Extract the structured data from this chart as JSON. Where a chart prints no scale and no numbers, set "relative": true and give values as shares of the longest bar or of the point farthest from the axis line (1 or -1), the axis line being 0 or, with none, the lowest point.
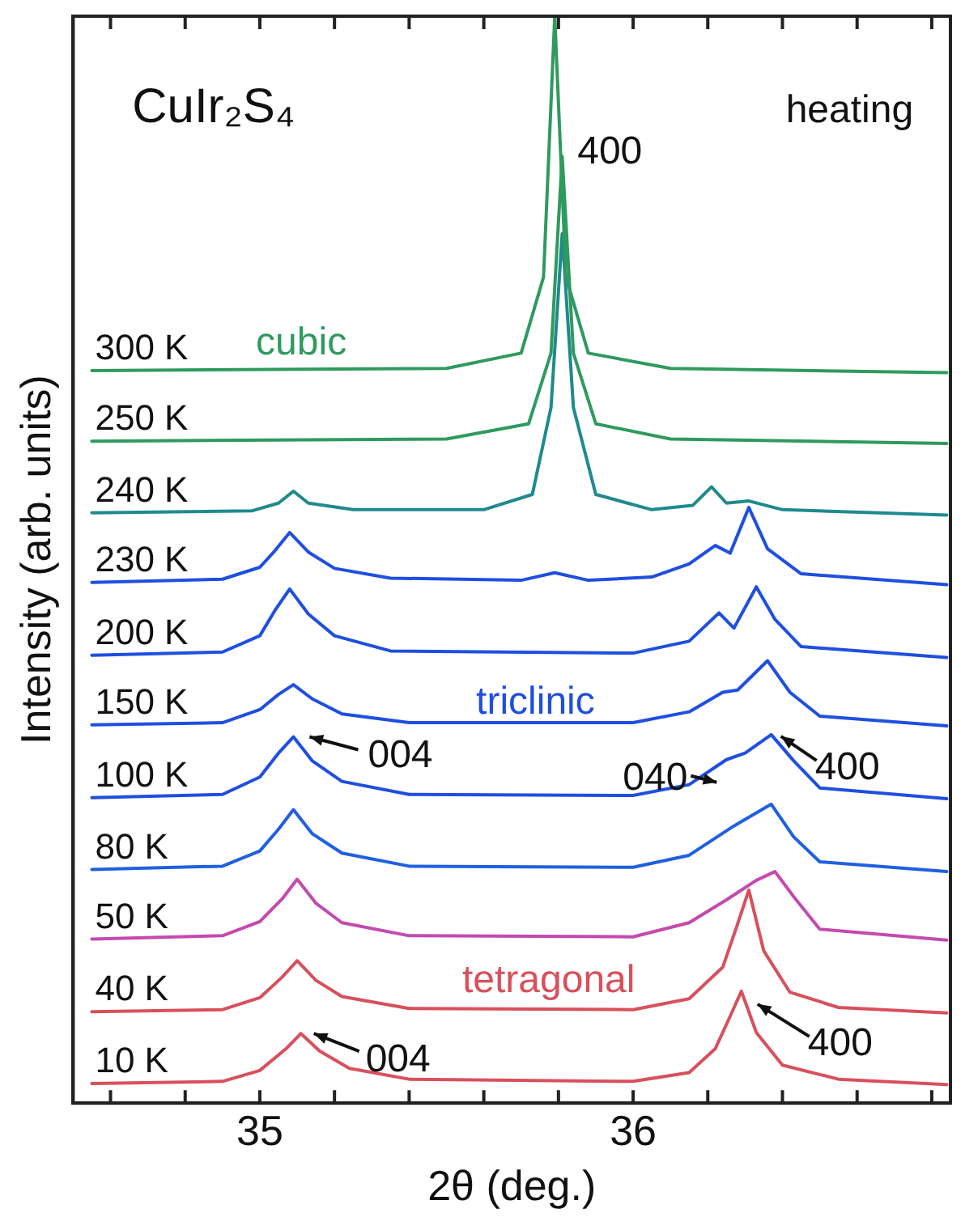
{
  "chart_data": {
    "type": "line",
    "xlabel": "2θ (deg.)",
    "ylabel": "Intensity (arb. units)",
    "relative": true,
    "marker": "none",
    "line_style": "solid",
    "legend": false,
    "grid": false,
    "xlim": [
      34.5,
      36.85
    ],
    "xticks": [
      {
        "value": 34.6,
        "label": null
      },
      {
        "value": 34.8,
        "label": null
      },
      35,
      {
        "value": 35.2,
        "label": null
      },
      {
        "value": 35.4,
        "label": null
      },
      {
        "value": 35.6,
        "label": null
      },
      {
        "value": 35.8,
        "label": null
      },
      36,
      {
        "value": 36.2,
        "label": null
      },
      {
        "value": 36.4,
        "label": null
      },
      {
        "value": 36.6,
        "label": null
      },
      {
        "value": 36.8,
        "label": null
      }
    ],
    "annotations": [
      "CuIr₂S₄",
      "heating",
      "cubic",
      "triclinic",
      "tetragonal",
      {
        "text": "400",
        "x": 35.79,
        "y": 0.8
      },
      {
        "text": "004",
        "x": 35.09,
        "y": 0.337
      },
      {
        "text": "040",
        "x": 36.25,
        "y": 0.316
      },
      {
        "text": "400",
        "x": 36.37,
        "y": 0.339
      },
      {
        "text": "004",
        "x": 35.11,
        "y": 0.064
      },
      {
        "text": "400",
        "x": 36.29,
        "y": 0.103
      }
    ],
    "series": [
      {
        "name": "300 K",
        "color": "#2f9a5e",
        "x": [
          34.55,
          35.5,
          35.7,
          35.76,
          35.79,
          35.82,
          35.88,
          36.1,
          36.84
        ],
        "values": [
          0.674,
          0.676,
          0.69,
          0.76,
          1.0,
          0.76,
          0.69,
          0.676,
          0.672
        ]
      },
      {
        "name": "250 K",
        "color": "#2f9a5e",
        "x": [
          34.55,
          35.5,
          35.72,
          35.78,
          35.81,
          35.84,
          35.9,
          36.1,
          36.84
        ],
        "values": [
          0.609,
          0.611,
          0.625,
          0.69,
          0.871,
          0.69,
          0.625,
          0.611,
          0.607
        ]
      },
      {
        "name": "240 K",
        "color": "#1f8a8e",
        "x": [
          34.55,
          34.98,
          35.05,
          35.09,
          35.13,
          35.25,
          35.6,
          35.73,
          35.78,
          35.81,
          35.84,
          35.9,
          36.05,
          36.16,
          36.21,
          36.25,
          36.31,
          36.4,
          36.84
        ],
        "values": [
          0.543,
          0.545,
          0.552,
          0.563,
          0.552,
          0.546,
          0.546,
          0.56,
          0.64,
          0.8,
          0.64,
          0.56,
          0.546,
          0.55,
          0.567,
          0.552,
          0.554,
          0.546,
          0.541
        ]
      },
      {
        "name": "230 K",
        "color": "#1f4fe0",
        "x": [
          34.55,
          34.9,
          35.0,
          35.04,
          35.08,
          35.13,
          35.2,
          35.35,
          35.7,
          35.79,
          35.88,
          36.05,
          36.15,
          36.22,
          36.26,
          36.31,
          36.36,
          36.45,
          36.84
        ],
        "values": [
          0.479,
          0.482,
          0.493,
          0.508,
          0.525,
          0.507,
          0.492,
          0.483,
          0.481,
          0.488,
          0.481,
          0.484,
          0.496,
          0.513,
          0.506,
          0.548,
          0.51,
          0.487,
          0.477
        ]
      },
      {
        "name": "200 K",
        "color": "#1f4fe0",
        "x": [
          34.55,
          34.9,
          35.0,
          35.04,
          35.08,
          35.13,
          35.2,
          35.35,
          36.0,
          36.15,
          36.23,
          36.27,
          36.33,
          36.38,
          36.45,
          36.84
        ],
        "values": [
          0.412,
          0.415,
          0.43,
          0.453,
          0.473,
          0.45,
          0.43,
          0.416,
          0.414,
          0.425,
          0.451,
          0.437,
          0.475,
          0.445,
          0.42,
          0.41
        ]
      },
      {
        "name": "150 K",
        "color": "#1f4fe0",
        "x": [
          34.55,
          34.9,
          35.0,
          35.05,
          35.09,
          35.14,
          35.22,
          35.4,
          36.0,
          36.15,
          36.24,
          36.28,
          36.36,
          36.42,
          36.5,
          36.84
        ],
        "values": [
          0.348,
          0.35,
          0.362,
          0.376,
          0.385,
          0.372,
          0.358,
          0.35,
          0.35,
          0.36,
          0.378,
          0.38,
          0.407,
          0.378,
          0.356,
          0.347
        ]
      },
      {
        "name": "100 K",
        "color": "#1f4fe0",
        "x": [
          34.55,
          34.9,
          35.0,
          35.05,
          35.09,
          35.14,
          35.22,
          35.4,
          36.0,
          36.15,
          36.25,
          36.3,
          36.37,
          36.43,
          36.5,
          36.84
        ],
        "values": [
          0.281,
          0.284,
          0.3,
          0.322,
          0.337,
          0.315,
          0.296,
          0.284,
          0.283,
          0.293,
          0.316,
          0.322,
          0.339,
          0.315,
          0.29,
          0.28
        ]
      },
      {
        "name": "80 K",
        "color": "#2060e0",
        "x": [
          34.55,
          34.9,
          35.0,
          35.05,
          35.09,
          35.14,
          35.22,
          35.4,
          36.0,
          36.15,
          36.27,
          36.37,
          36.43,
          36.5,
          36.84
        ],
        "values": [
          0.215,
          0.218,
          0.232,
          0.252,
          0.27,
          0.248,
          0.23,
          0.218,
          0.217,
          0.228,
          0.255,
          0.275,
          0.245,
          0.222,
          0.213
        ]
      },
      {
        "name": "50 K",
        "color": "#c44aae",
        "x": [
          34.55,
          34.9,
          35.0,
          35.06,
          35.1,
          35.15,
          35.22,
          35.4,
          36.0,
          36.15,
          36.25,
          36.33,
          36.38,
          36.43,
          36.5,
          36.84
        ],
        "values": [
          0.151,
          0.154,
          0.167,
          0.188,
          0.206,
          0.184,
          0.166,
          0.154,
          0.153,
          0.166,
          0.187,
          0.205,
          0.213,
          0.19,
          0.16,
          0.15
        ]
      },
      {
        "name": "40 K",
        "color": "#d8505c",
        "x": [
          34.55,
          34.9,
          35.0,
          35.06,
          35.1,
          35.15,
          35.22,
          35.4,
          36.0,
          36.15,
          36.24,
          36.28,
          36.31,
          36.35,
          36.42,
          36.55,
          36.84
        ],
        "values": [
          0.084,
          0.086,
          0.097,
          0.116,
          0.131,
          0.113,
          0.098,
          0.087,
          0.086,
          0.096,
          0.125,
          0.165,
          0.196,
          0.14,
          0.102,
          0.088,
          0.083
        ]
      },
      {
        "name": "10 K",
        "color": "#d8505c",
        "x": [
          34.55,
          34.9,
          35.0,
          35.07,
          35.11,
          35.16,
          35.24,
          35.4,
          36.0,
          36.15,
          36.22,
          36.26,
          36.29,
          36.33,
          36.4,
          36.55,
          36.84
        ],
        "values": [
          0.018,
          0.02,
          0.03,
          0.05,
          0.064,
          0.048,
          0.032,
          0.022,
          0.02,
          0.028,
          0.05,
          0.08,
          0.103,
          0.065,
          0.035,
          0.022,
          0.017
        ]
      }
    ]
  }
}
